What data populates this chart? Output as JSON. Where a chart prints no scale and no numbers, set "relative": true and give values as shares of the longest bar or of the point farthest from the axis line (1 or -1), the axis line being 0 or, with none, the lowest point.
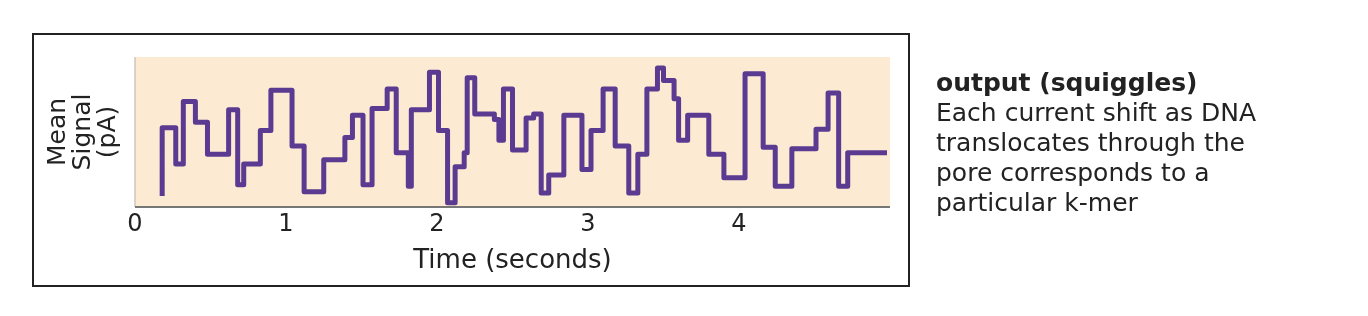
{
  "chart_data": {
    "type": "step",
    "title": "output (squiggles)",
    "annotations": [
      "Each current shift as DNA translocates through the pore corresponds to a particular k-mer"
    ],
    "xlabel": "Time (seconds)",
    "ylabel": "Mean Signal (pA)",
    "relative": true,
    "xlim": [
      0,
      5
    ],
    "xticks": [
      0,
      1,
      2,
      3,
      4
    ],
    "legend": false,
    "marker": "none",
    "x": [
      0.18,
      0.18,
      0.27,
      0.32,
      0.4,
      0.48,
      0.62,
      0.68,
      0.72,
      0.83,
      0.9,
      1.04,
      1.12,
      1.25,
      1.39,
      1.44,
      1.51,
      1.57,
      1.67,
      1.73,
      1.81,
      1.83,
      1.95,
      2.01,
      2.07,
      2.12,
      2.18,
      2.2,
      2.25,
      2.38,
      2.41,
      2.44,
      2.5,
      2.59,
      2.64,
      2.69,
      2.74,
      2.84,
      2.96,
      3.02,
      3.1,
      3.18,
      3.27,
      3.33,
      3.39,
      3.46,
      3.5,
      3.57,
      3.6,
      3.66,
      3.8,
      3.9,
      4.04,
      4.16,
      4.24,
      4.35,
      4.51,
      4.59,
      4.66,
      4.72,
      4.82,
      4.98
    ],
    "series": [
      {
        "color": "#5b3a91",
        "values": [
          0.08,
          0.44,
          0.57,
          0.31,
          0.76,
          0.61,
          0.38,
          0.7,
          0.16,
          0.31,
          0.55,
          0.84,
          0.44,
          0.11,
          0.34,
          0.5,
          0.66,
          0.16,
          0.71,
          0.85,
          0.39,
          0.15,
          0.7,
          0.97,
          0.55,
          0.03,
          0.29,
          0.39,
          0.93,
          0.67,
          0.63,
          0.48,
          0.85,
          0.41,
          0.64,
          0.67,
          0.1,
          0.23,
          0.66,
          0.27,
          0.55,
          0.85,
          0.44,
          0.1,
          0.38,
          0.85,
          1.0,
          0.91,
          0.78,
          0.48,
          0.66,
          0.38,
          0.21,
          0.96,
          0.43,
          0.15,
          0.42,
          0.56,
          0.82,
          0.15,
          0.39,
          0.39
        ]
      }
    ]
  }
}
